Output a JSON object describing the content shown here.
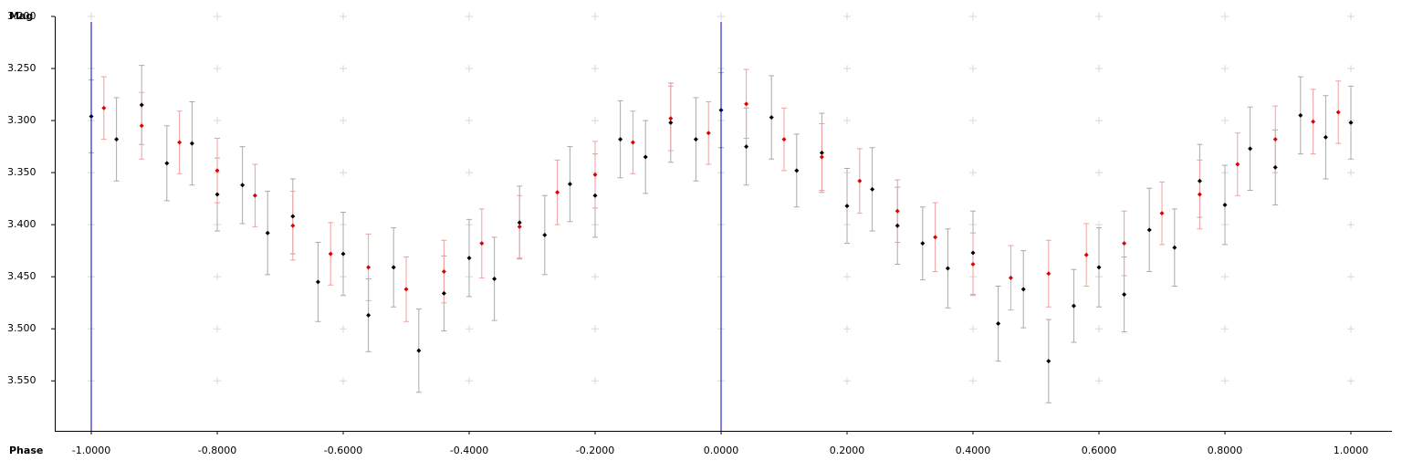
{
  "chart_data": {
    "type": "scatter",
    "x_label": "Phase",
    "y_label": "Mag",
    "xlim": [
      -1.058,
      1.0652
    ],
    "ylim": [
      3.2,
      3.598
    ],
    "y_inverted": true,
    "xticks": [
      {
        "value": -1,
        "label": "-1.0000"
      },
      {
        "value": -0.8,
        "label": "-0.8000"
      },
      {
        "value": -0.6,
        "label": "-0.6000"
      },
      {
        "value": -0.4,
        "label": "-0.4000"
      },
      {
        "value": -0.2,
        "label": "-0.2000"
      },
      {
        "value": 0,
        "label": "0.0000"
      },
      {
        "value": 0.2,
        "label": "0.2000"
      },
      {
        "value": 0.4,
        "label": "0.4000"
      },
      {
        "value": 0.6,
        "label": "0.6000"
      },
      {
        "value": 0.8,
        "label": "0.8000"
      },
      {
        "value": 1,
        "label": "1.0000"
      }
    ],
    "yticks": [
      {
        "value": 3.2,
        "label": "3.200"
      },
      {
        "value": 3.25,
        "label": "3.250"
      },
      {
        "value": 3.3,
        "label": "3.300"
      },
      {
        "value": 3.35,
        "label": "3.350"
      },
      {
        "value": 3.4,
        "label": "3.400"
      },
      {
        "value": 3.45,
        "label": "3.450"
      },
      {
        "value": 3.5,
        "label": "3.500"
      },
      {
        "value": 3.55,
        "label": "3.550"
      }
    ],
    "grid": "crosses",
    "vlines": [
      -1,
      0
    ],
    "vline_color": "#0000cc",
    "series": [
      {
        "color": "#000000",
        "error_color": "#aaaaaa",
        "x": [
          -1,
          -0.96,
          -0.92,
          -0.88,
          -0.84,
          -0.8,
          -0.76,
          -0.72,
          -0.68,
          -0.64,
          -0.6,
          -0.56,
          -0.52,
          -0.48,
          -0.44,
          -0.4,
          -0.36,
          -0.32,
          -0.28,
          -0.24,
          -0.2,
          -0.16,
          -0.12,
          -0.08,
          -0.04,
          0,
          0.04,
          0.08,
          0.12,
          0.16,
          0.2,
          0.24,
          0.28,
          0.32,
          0.36,
          0.4,
          0.44,
          0.48,
          0.52,
          0.56,
          0.6,
          0.64,
          0.68,
          0.72,
          0.76,
          0.8,
          0.84,
          0.88,
          0.92,
          0.96,
          1
        ],
        "values": [
          3.296,
          3.318,
          3.285,
          3.341,
          3.322,
          3.371,
          3.362,
          3.408,
          3.392,
          3.455,
          3.428,
          3.487,
          3.441,
          3.521,
          3.466,
          3.432,
          3.452,
          3.398,
          3.41,
          3.361,
          3.372,
          3.318,
          3.335,
          3.302,
          3.318,
          3.29,
          3.325,
          3.297,
          3.348,
          3.331,
          3.382,
          3.366,
          3.401,
          3.418,
          3.442,
          3.427,
          3.495,
          3.462,
          3.531,
          3.478,
          3.441,
          3.467,
          3.405,
          3.422,
          3.358,
          3.381,
          3.327,
          3.345,
          3.295,
          3.316,
          3.302
        ],
        "errors": [
          0.035,
          0.04,
          0.038,
          0.036,
          0.04,
          0.035,
          0.037,
          0.04,
          0.036,
          0.038,
          0.04,
          0.035,
          0.038,
          0.04,
          0.036,
          0.037,
          0.04,
          0.035,
          0.038,
          0.036,
          0.04,
          0.037,
          0.035,
          0.038,
          0.04,
          0.036,
          0.037,
          0.04,
          0.035,
          0.038,
          0.036,
          0.04,
          0.037,
          0.035,
          0.038,
          0.04,
          0.036,
          0.037,
          0.04,
          0.035,
          0.038,
          0.036,
          0.04,
          0.037,
          0.035,
          0.038,
          0.04,
          0.036,
          0.037,
          0.04,
          0.035
        ]
      },
      {
        "color": "#e00000",
        "error_color": "#f0a0a0",
        "x": [
          -0.98,
          -0.92,
          -0.86,
          -0.8,
          -0.74,
          -0.68,
          -0.62,
          -0.56,
          -0.5,
          -0.44,
          -0.38,
          -0.32,
          -0.26,
          -0.2,
          -0.14,
          -0.08,
          -0.02,
          0.04,
          0.1,
          0.16,
          0.22,
          0.28,
          0.34,
          0.4,
          0.46,
          0.52,
          0.58,
          0.64,
          0.7,
          0.76,
          0.82,
          0.88,
          0.94,
          0.98
        ],
        "values": [
          3.288,
          3.305,
          3.321,
          3.348,
          3.372,
          3.401,
          3.428,
          3.441,
          3.462,
          3.445,
          3.418,
          3.402,
          3.369,
          3.352,
          3.321,
          3.298,
          3.312,
          3.284,
          3.318,
          3.335,
          3.358,
          3.387,
          3.412,
          3.438,
          3.451,
          3.447,
          3.429,
          3.418,
          3.389,
          3.371,
          3.342,
          3.318,
          3.301,
          3.292
        ],
        "errors": [
          0.03,
          0.032,
          0.03,
          0.031,
          0.03,
          0.033,
          0.03,
          0.032,
          0.031,
          0.03,
          0.033,
          0.03,
          0.031,
          0.032,
          0.03,
          0.031,
          0.03,
          0.033,
          0.03,
          0.032,
          0.031,
          0.03,
          0.033,
          0.03,
          0.031,
          0.032,
          0.03,
          0.031,
          0.03,
          0.033,
          0.03,
          0.032,
          0.031,
          0.03
        ]
      }
    ]
  }
}
